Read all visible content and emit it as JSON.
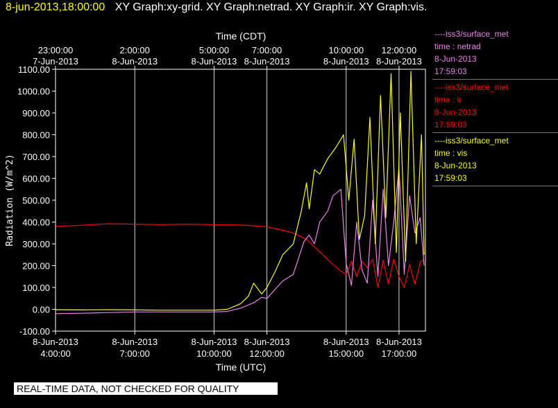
{
  "title": {
    "datetime": "8-jun-2013,18:00:00",
    "graphs": "XY Graph:xy-grid.  XY Graph:netrad.  XY Graph:ir.  XY Graph:vis."
  },
  "quality_notice": "REAL-TIME DATA, NOT CHECKED FOR QUALITY",
  "legend": [
    {
      "source": "----iss3/surface_met",
      "var": "time : netrad",
      "date": "8-Jun-2013",
      "time": "17:59:03",
      "color": "#ee82ee"
    },
    {
      "source": "----iss3/surface_met",
      "var": "time : ir",
      "date": "8-Jun-2013",
      "time": "17:59:03",
      "color": "#ff0000"
    },
    {
      "source": "----iss3/surface_met",
      "var": "time : vis",
      "date": "8-Jun-2013",
      "time": "17:59:03",
      "color": "#ffff00"
    }
  ],
  "chart_data": {
    "type": "line",
    "ylabel": "Radiation (W/m^2)",
    "ylim": [
      -100,
      1100
    ],
    "yticks": [
      -100,
      0,
      100,
      200,
      300,
      400,
      500,
      600,
      700,
      800,
      900,
      1000,
      1100
    ],
    "ytick_labels": [
      "-100.00",
      "0.00",
      "100.00",
      "200.00",
      "300.00",
      "400.00",
      "500.00",
      "600.00",
      "700.00",
      "800.00",
      "900.00",
      "1000.00",
      "1100.00"
    ],
    "xlim": [
      4.0,
      18.0
    ],
    "bottom_axis": {
      "label": "Time (UTC)",
      "ticks": [
        {
          "x": 4.0,
          "date": "8-Jun-2013",
          "time": "4:00:00"
        },
        {
          "x": 7.0,
          "date": "8-Jun-2013",
          "time": "7:00:00"
        },
        {
          "x": 10.0,
          "date": "8-Jun-2013",
          "time": "10:00:00"
        },
        {
          "x": 12.0,
          "date": "8-Jun-2013",
          "time": "12:00:00"
        },
        {
          "x": 15.0,
          "date": "8-Jun-2013",
          "time": "15:00:00"
        },
        {
          "x": 17.0,
          "date": "8-Jun-2013",
          "time": "17:00:00"
        }
      ]
    },
    "top_axis": {
      "label": "Time (CDT)",
      "ticks": [
        {
          "x": 4.0,
          "time": "23:00:00",
          "date": "7-Jun-2013"
        },
        {
          "x": 7.0,
          "time": "2:00:00",
          "date": "8-Jun-2013"
        },
        {
          "x": 10.0,
          "time": "5:00:00",
          "date": "8-Jun-2013"
        },
        {
          "x": 12.0,
          "time": "7:00:00",
          "date": "8-Jun-2013"
        },
        {
          "x": 15.0,
          "time": "10:00:00",
          "date": "8-Jun-2013"
        },
        {
          "x": 17.0,
          "time": "12:00:00",
          "date": "8-Jun-2013"
        }
      ]
    },
    "grid_x": true,
    "series": [
      {
        "key": "ir",
        "color": "#ff0000",
        "x": [
          4.0,
          5.0,
          6.0,
          7.0,
          8.0,
          9.0,
          10.0,
          11.0,
          11.5,
          12.0,
          12.5,
          13.0,
          13.5,
          13.9,
          14.2,
          14.5,
          14.8,
          15.0,
          15.2,
          15.4,
          15.6,
          15.8,
          16.0,
          16.2,
          16.4,
          16.6,
          16.8,
          17.0,
          17.2,
          17.4,
          17.6,
          17.8,
          17.95
        ],
        "y": [
          380,
          385,
          392,
          390,
          388,
          390,
          388,
          386,
          383,
          378,
          365,
          350,
          320,
          275,
          240,
          205,
          175,
          160,
          220,
          150,
          220,
          190,
          230,
          100,
          225,
          115,
          230,
          150,
          100,
          205,
          115,
          215,
          230
        ]
      },
      {
        "key": "netrad",
        "color": "#ee82ee",
        "x": [
          4.0,
          5.0,
          6.0,
          7.0,
          8.0,
          9.0,
          10.0,
          10.5,
          11.0,
          11.5,
          11.8,
          12.0,
          12.3,
          12.6,
          13.0,
          13.4,
          13.6,
          13.8,
          14.0,
          14.3,
          14.5,
          14.8,
          15.0,
          15.2,
          15.4,
          15.6,
          15.8,
          16.0,
          16.2,
          16.4,
          16.6,
          16.8,
          17.0,
          17.2,
          17.4,
          17.6,
          17.8,
          17.95
        ],
        "y": [
          -20,
          -18,
          -15,
          -12,
          -12,
          -12,
          -12,
          -10,
          5,
          30,
          55,
          50,
          90,
          130,
          160,
          310,
          340,
          300,
          400,
          450,
          520,
          550,
          210,
          110,
          400,
          180,
          120,
          500,
          150,
          550,
          200,
          400,
          650,
          160,
          520,
          350,
          420,
          200
        ]
      },
      {
        "key": "vis",
        "color": "#ffff00",
        "x": [
          4.0,
          5.0,
          6.0,
          7.0,
          8.0,
          9.0,
          10.0,
          10.5,
          11.0,
          11.3,
          11.5,
          11.8,
          12.0,
          12.3,
          12.6,
          13.0,
          13.3,
          13.5,
          13.6,
          13.8,
          14.0,
          14.3,
          14.6,
          14.9,
          15.1,
          15.3,
          15.5,
          15.7,
          15.9,
          16.1,
          16.3,
          16.5,
          16.7,
          16.9,
          17.05,
          17.25,
          17.45,
          17.65,
          17.85,
          17.95
        ],
        "y": [
          -2,
          -3,
          -2,
          -3,
          -4,
          -4,
          -4,
          0,
          25,
          60,
          120,
          70,
          100,
          170,
          250,
          300,
          450,
          580,
          460,
          640,
          620,
          690,
          740,
          800,
          500,
          780,
          320,
          430,
          880,
          300,
          980,
          420,
          1080,
          260,
          900,
          220,
          1090,
          300,
          800,
          250
        ]
      }
    ]
  }
}
